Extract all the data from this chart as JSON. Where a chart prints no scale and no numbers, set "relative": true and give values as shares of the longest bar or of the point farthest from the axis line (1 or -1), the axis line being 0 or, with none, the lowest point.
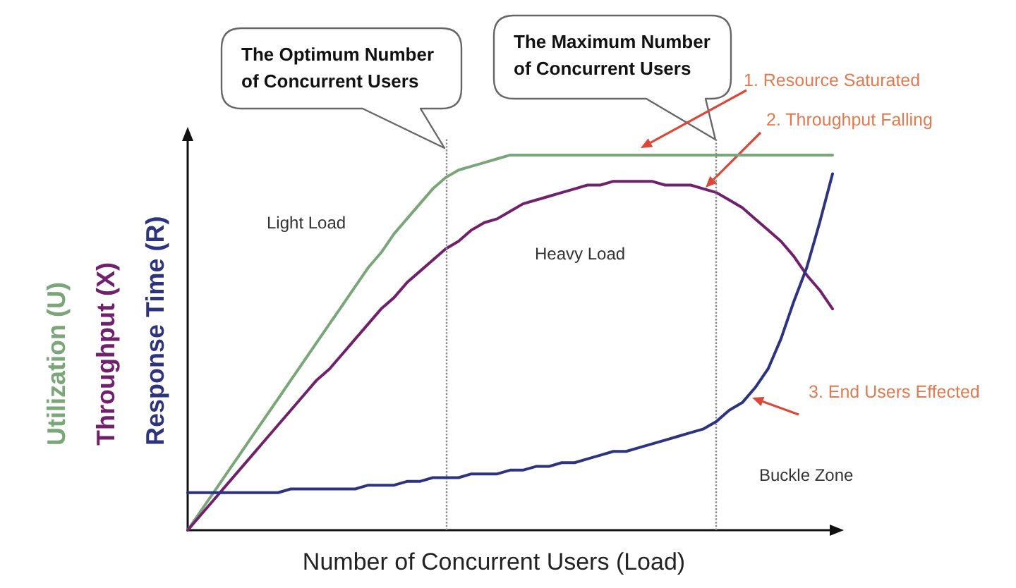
{
  "chart_data": {
    "type": "line",
    "relative": true,
    "xlabel": "Number of Concurrent Users (Load)",
    "categories": [
      null,
      null,
      null,
      null,
      null,
      null,
      null,
      null,
      null,
      null,
      null,
      null,
      null,
      null,
      null,
      null,
      null,
      null,
      null,
      null,
      null,
      null,
      null,
      null,
      null,
      null,
      null,
      null,
      null,
      null,
      null,
      null,
      null,
      null,
      null,
      null,
      null,
      null,
      null,
      null,
      null,
      null,
      null,
      null,
      null,
      null,
      null,
      null,
      null,
      null,
      null
    ],
    "series": [
      {
        "name": "Utilization (U)",
        "color": "#7aa67a",
        "values": [
          0,
          0.05,
          0.1,
          0.15,
          0.2,
          0.25,
          0.3,
          0.35,
          0.4,
          0.45,
          0.5,
          0.55,
          0.6,
          0.65,
          0.7,
          0.74,
          0.79,
          0.83,
          0.87,
          0.91,
          0.94,
          0.96,
          0.97,
          0.98,
          0.99,
          1,
          1,
          1,
          1,
          1,
          1,
          1,
          1,
          1,
          1,
          1,
          1,
          1,
          1,
          1,
          1,
          1,
          1,
          1,
          1,
          1,
          1,
          1,
          1,
          1,
          1
        ]
      },
      {
        "name": "Throughput (X)",
        "color": "#6f216c",
        "values": [
          0,
          0.04,
          0.08,
          0.12,
          0.16,
          0.2,
          0.24,
          0.28,
          0.32,
          0.36,
          0.4,
          0.43,
          0.47,
          0.51,
          0.55,
          0.59,
          0.62,
          0.66,
          0.69,
          0.72,
          0.75,
          0.77,
          0.8,
          0.82,
          0.83,
          0.85,
          0.87,
          0.88,
          0.89,
          0.9,
          0.91,
          0.92,
          0.92,
          0.93,
          0.93,
          0.93,
          0.93,
          0.92,
          0.92,
          0.92,
          0.91,
          0.9,
          0.88,
          0.86,
          0.83,
          0.8,
          0.77,
          0.73,
          0.68,
          0.64,
          0.59
        ]
      },
      {
        "name": "Response Time (R)",
        "color": "#2e3380",
        "values": [
          0.1,
          0.1,
          0.1,
          0.1,
          0.1,
          0.1,
          0.1,
          0.1,
          0.11,
          0.11,
          0.11,
          0.11,
          0.11,
          0.11,
          0.12,
          0.12,
          0.12,
          0.13,
          0.13,
          0.14,
          0.14,
          0.14,
          0.15,
          0.15,
          0.15,
          0.16,
          0.16,
          0.17,
          0.17,
          0.18,
          0.18,
          0.19,
          0.2,
          0.21,
          0.21,
          0.22,
          0.23,
          0.24,
          0.25,
          0.26,
          0.27,
          0.29,
          0.32,
          0.34,
          0.38,
          0.43,
          0.51,
          0.61,
          0.7,
          0.82,
          0.95
        ]
      }
    ],
    "annotations": [
      "The Optimum Number of Concurrent Users",
      "The Maximum Number of Concurrent Users",
      "Light Load",
      "Heavy Load",
      "Buckle Zone",
      "1. Resource Saturated",
      "2. Throughput Falling",
      "3. End Users Effected"
    ]
  }
}
